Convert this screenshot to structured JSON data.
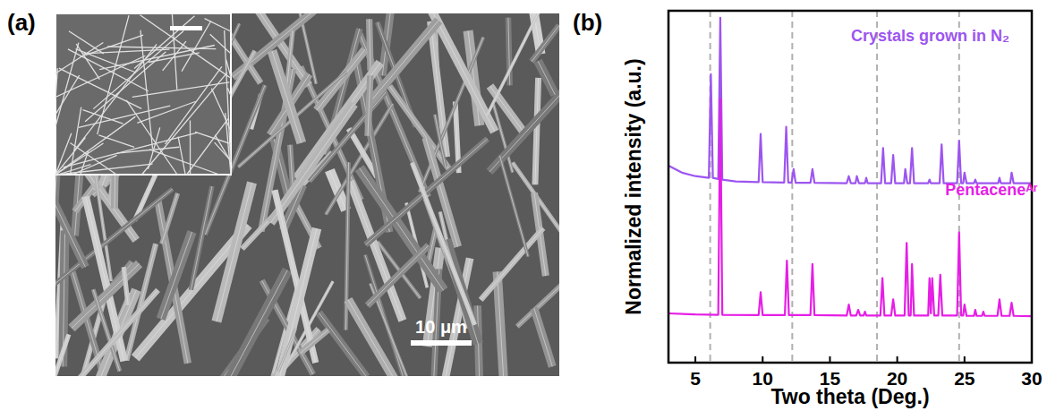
{
  "panel_a": {
    "label": "(a)",
    "scale_bar": "10 μm"
  },
  "chart_data": {
    "type": "line",
    "panel_label": "(b)",
    "x_label": "Two theta (Deg.)",
    "y_label": "Normalized intensity (a.u.)",
    "xlim": [
      3,
      30
    ],
    "xticks": [
      5,
      10,
      15,
      20,
      25,
      30
    ],
    "ylim": [
      0,
      1
    ],
    "tick_labels": "x",
    "grid": false,
    "vlines": [
      6.1,
      12.2,
      18.5,
      24.6
    ],
    "series": [
      {
        "name": "Crystals grown in N₂",
        "color": "#9d55f0",
        "x": [
          3,
          4,
          5,
          6.0,
          6.15,
          6.3,
          6.7,
          6.85,
          7.0,
          8,
          9.7,
          9.85,
          10.0,
          11.6,
          11.75,
          11.9,
          12.15,
          12.3,
          12.45,
          13.55,
          13.7,
          13.85,
          16.25,
          16.4,
          16.55,
          16.9,
          17.0,
          17.15,
          17.6,
          17.7,
          17.8,
          18.8,
          18.95,
          19.1,
          19.55,
          19.7,
          19.85,
          20.5,
          20.6,
          20.75,
          20.95,
          21.1,
          21.25,
          22.3,
          22.4,
          22.5,
          23.15,
          23.3,
          23.45,
          24.45,
          24.6,
          24.75,
          24.9,
          25.0,
          25.15,
          25.7,
          25.8,
          25.9,
          27.5,
          27.6,
          27.7,
          28.4,
          28.5,
          28.65,
          30
        ],
        "values": [
          0.56,
          0.54,
          0.53,
          0.525,
          0.82,
          0.525,
          0.522,
          0.98,
          0.52,
          0.515,
          0.513,
          0.65,
          0.513,
          0.512,
          0.67,
          0.512,
          0.512,
          0.55,
          0.511,
          0.511,
          0.55,
          0.511,
          0.51,
          0.53,
          0.51,
          0.51,
          0.53,
          0.51,
          0.51,
          0.525,
          0.51,
          0.51,
          0.61,
          0.51,
          0.51,
          0.59,
          0.51,
          0.51,
          0.55,
          0.51,
          0.51,
          0.61,
          0.51,
          0.51,
          0.52,
          0.51,
          0.51,
          0.62,
          0.51,
          0.51,
          0.63,
          0.51,
          0.51,
          0.54,
          0.51,
          0.51,
          0.52,
          0.51,
          0.51,
          0.525,
          0.51,
          0.51,
          0.54,
          0.51,
          0.51
        ]
      },
      {
        "name": "Pentaceneᴬʳ",
        "color": "#e61ee6",
        "x": [
          3,
          5,
          6.7,
          6.85,
          7.0,
          9.7,
          9.85,
          10.0,
          11.65,
          11.8,
          11.95,
          13.55,
          13.7,
          13.85,
          16.25,
          16.4,
          16.55,
          16.95,
          17.1,
          17.25,
          17.5,
          17.6,
          17.7,
          18.75,
          18.9,
          19.05,
          19.55,
          19.7,
          19.85,
          20.55,
          20.7,
          20.85,
          21.0,
          21.1,
          21.25,
          22.3,
          22.4,
          22.5,
          22.6,
          22.75,
          23.05,
          23.2,
          23.35,
          24.45,
          24.6,
          24.75,
          24.9,
          25.0,
          25.15,
          25.7,
          25.8,
          25.9,
          26.3,
          26.4,
          26.5,
          27.45,
          27.6,
          27.75,
          28.35,
          28.5,
          28.65,
          30
        ],
        "values": [
          0.14,
          0.137,
          0.136,
          0.75,
          0.136,
          0.135,
          0.2,
          0.135,
          0.135,
          0.29,
          0.135,
          0.135,
          0.28,
          0.135,
          0.134,
          0.165,
          0.134,
          0.134,
          0.15,
          0.134,
          0.134,
          0.145,
          0.134,
          0.134,
          0.24,
          0.134,
          0.134,
          0.18,
          0.134,
          0.134,
          0.34,
          0.134,
          0.134,
          0.28,
          0.134,
          0.134,
          0.24,
          0.14,
          0.24,
          0.134,
          0.134,
          0.25,
          0.134,
          0.134,
          0.37,
          0.134,
          0.134,
          0.165,
          0.133,
          0.133,
          0.15,
          0.133,
          0.133,
          0.145,
          0.133,
          0.133,
          0.18,
          0.133,
          0.133,
          0.17,
          0.133,
          0.132
        ]
      }
    ]
  }
}
